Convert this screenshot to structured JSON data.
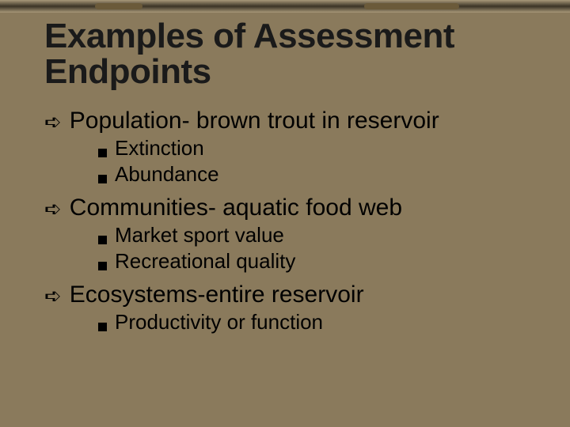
{
  "colors": {
    "background": "#8a7a5c",
    "title": "#1a1a1a",
    "text": "#000000",
    "bullet": "#000000"
  },
  "title": "Examples of Assessment Endpoints",
  "items": [
    {
      "text": "Population- brown trout in reservoir",
      "sub": [
        "Extinction",
        "Abundance"
      ]
    },
    {
      "text": "Communities- aquatic food web",
      "sub": [
        "Market sport value",
        "Recreational quality"
      ]
    },
    {
      "text": "Ecosystems-entire reservoir",
      "sub": [
        "Productivity or function"
      ]
    }
  ],
  "fontsizes": {
    "title": 44,
    "lvl1": 30,
    "lvl2": 26
  }
}
